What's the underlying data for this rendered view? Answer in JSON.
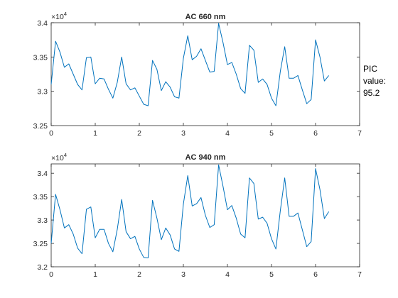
{
  "chart_data": [
    {
      "type": "line",
      "title": "AC 660 nm",
      "xlabel": "",
      "ylabel": "",
      "xlim": [
        0,
        7
      ],
      "ylim": [
        3.25,
        3.4
      ],
      "y_multiplier_label": "×10",
      "y_multiplier_exponent": "4",
      "xticks": [
        0,
        1,
        2,
        3,
        4,
        5,
        6,
        7
      ],
      "xtick_labels": [
        "0",
        "1",
        "2",
        "3",
        "4",
        "5",
        "6",
        "7"
      ],
      "yticks": [
        3.25,
        3.3,
        3.35,
        3.4
      ],
      "ytick_labels": [
        "3.25",
        "3.3",
        "3.35",
        "3.4"
      ],
      "line_color": "#0072BD",
      "series": [
        {
          "name": "AC 660 nm",
          "x": [
            0.0,
            0.1,
            0.2,
            0.3,
            0.4,
            0.5,
            0.6,
            0.7,
            0.8,
            0.9,
            1.0,
            1.1,
            1.2,
            1.3,
            1.4,
            1.5,
            1.6,
            1.7,
            1.8,
            1.9,
            2.0,
            2.1,
            2.2,
            2.3,
            2.4,
            2.5,
            2.6,
            2.7,
            2.8,
            2.9,
            3.0,
            3.1,
            3.2,
            3.3,
            3.4,
            3.5,
            3.6,
            3.7,
            3.8,
            3.9,
            4.0,
            4.1,
            4.2,
            4.3,
            4.4,
            4.5,
            4.6,
            4.7,
            4.8,
            4.9,
            5.0,
            5.1,
            5.2,
            5.3,
            5.4,
            5.5,
            5.6,
            5.7,
            5.8,
            5.9,
            6.0,
            6.1,
            6.2,
            6.3
          ],
          "values": [
            3.31,
            3.373,
            3.357,
            3.335,
            3.34,
            3.325,
            3.31,
            3.302,
            3.349,
            3.35,
            3.311,
            3.319,
            3.318,
            3.303,
            3.29,
            3.313,
            3.35,
            3.311,
            3.302,
            3.305,
            3.293,
            3.281,
            3.279,
            3.345,
            3.332,
            3.301,
            3.314,
            3.306,
            3.292,
            3.29,
            3.348,
            3.381,
            3.346,
            3.351,
            3.362,
            3.345,
            3.328,
            3.329,
            3.399,
            3.371,
            3.339,
            3.342,
            3.325,
            3.304,
            3.297,
            3.367,
            3.36,
            3.313,
            3.318,
            3.31,
            3.29,
            3.279,
            3.329,
            3.365,
            3.319,
            3.319,
            3.323,
            3.302,
            3.282,
            3.288,
            3.375,
            3.35,
            3.315,
            3.323
          ]
        }
      ]
    },
    {
      "type": "line",
      "title": "AC 940 nm",
      "xlabel": "",
      "ylabel": "",
      "xlim": [
        0,
        7
      ],
      "ylim": [
        3.2,
        3.42
      ],
      "y_multiplier_label": "×10",
      "y_multiplier_exponent": "4",
      "xticks": [
        0,
        1,
        2,
        3,
        4,
        5,
        6,
        7
      ],
      "xtick_labels": [
        "0",
        "1",
        "2",
        "3",
        "4",
        "5",
        "6",
        "7"
      ],
      "yticks": [
        3.2,
        3.25,
        3.3,
        3.35,
        3.4
      ],
      "ytick_labels": [
        "3.2",
        "3.25",
        "3.3",
        "3.35",
        "3.4"
      ],
      "line_color": "#0072BD",
      "series": [
        {
          "name": "AC 940 nm",
          "x": [
            0.0,
            0.1,
            0.2,
            0.3,
            0.4,
            0.5,
            0.6,
            0.7,
            0.8,
            0.9,
            1.0,
            1.1,
            1.2,
            1.3,
            1.4,
            1.5,
            1.6,
            1.7,
            1.8,
            1.9,
            2.0,
            2.1,
            2.2,
            2.3,
            2.4,
            2.5,
            2.6,
            2.7,
            2.8,
            2.9,
            3.0,
            3.1,
            3.2,
            3.3,
            3.4,
            3.5,
            3.6,
            3.7,
            3.8,
            3.9,
            4.0,
            4.1,
            4.2,
            4.3,
            4.4,
            4.5,
            4.6,
            4.7,
            4.8,
            4.9,
            5.0,
            5.1,
            5.2,
            5.3,
            5.4,
            5.5,
            5.6,
            5.7,
            5.8,
            5.9,
            6.0,
            6.1,
            6.2,
            6.3
          ],
          "values": [
            3.25,
            3.355,
            3.322,
            3.283,
            3.29,
            3.27,
            3.24,
            3.228,
            3.323,
            3.328,
            3.262,
            3.28,
            3.28,
            3.25,
            3.232,
            3.28,
            3.344,
            3.275,
            3.26,
            3.265,
            3.238,
            3.22,
            3.219,
            3.342,
            3.304,
            3.258,
            3.283,
            3.268,
            3.238,
            3.233,
            3.334,
            3.395,
            3.33,
            3.335,
            3.348,
            3.31,
            3.284,
            3.29,
            3.418,
            3.372,
            3.322,
            3.331,
            3.304,
            3.27,
            3.262,
            3.39,
            3.378,
            3.302,
            3.306,
            3.293,
            3.26,
            3.238,
            3.32,
            3.39,
            3.308,
            3.308,
            3.315,
            3.279,
            3.243,
            3.254,
            3.41,
            3.365,
            3.303,
            3.318
          ]
        }
      ]
    }
  ],
  "side_annotation": {
    "line1": "PIC",
    "line2": "value:",
    "line3": "95.2"
  }
}
